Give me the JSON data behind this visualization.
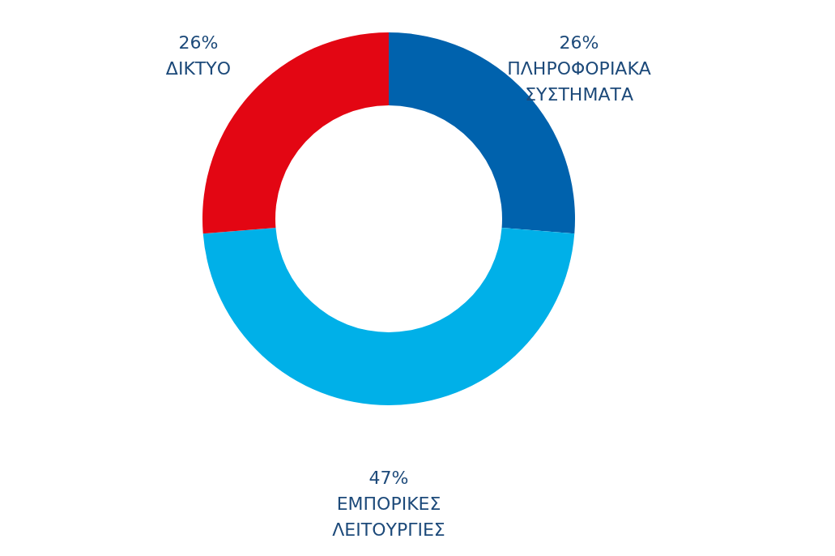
{
  "chart_data": {
    "type": "donut",
    "categories": [
      "ΠΛΗΡΟΦΟΡΙΑΚΑ ΣΥΣΤΗΜΑΤΑ",
      "ΕΜΠΟΡΙΚΕΣ ΛΕΙΤΟΥΡΓΙΕΣ",
      "ΔΙΚΤΥΟ"
    ],
    "values": [
      26,
      47,
      26
    ],
    "colors": [
      "#0062ad",
      "#00b0e8",
      "#e30613"
    ],
    "value_labels": [
      "26%",
      "47%",
      "26%"
    ]
  }
}
